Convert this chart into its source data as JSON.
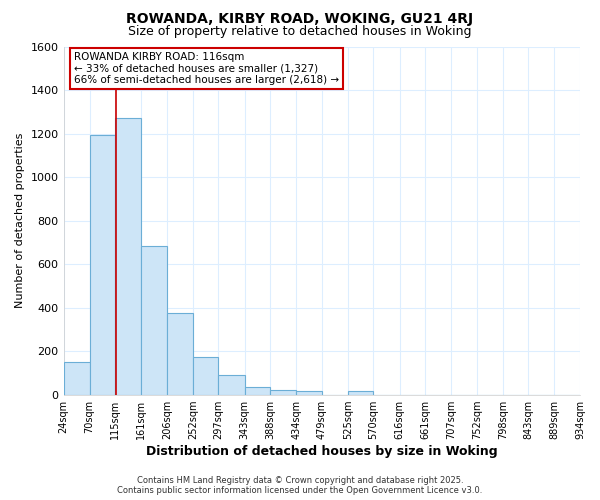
{
  "title": "ROWANDA, KIRBY ROAD, WOKING, GU21 4RJ",
  "subtitle": "Size of property relative to detached houses in Woking",
  "xlabel": "Distribution of detached houses by size in Woking",
  "ylabel": "Number of detached properties",
  "bin_edges": [
    24,
    70,
    115,
    161,
    206,
    252,
    297,
    343,
    388,
    434,
    479,
    525,
    570,
    616,
    661,
    707,
    752,
    798,
    843,
    889,
    934
  ],
  "bar_heights": [
    150,
    1195,
    1270,
    685,
    375,
    175,
    90,
    33,
    22,
    18,
    0,
    18,
    0,
    0,
    0,
    0,
    0,
    0,
    0,
    0
  ],
  "bar_color": "#cde5f7",
  "bar_edge_color": "#6baed6",
  "property_line_x": 116,
  "property_line_color": "#cc0000",
  "annotation_line1": "ROWANDA KIRBY ROAD: 116sqm",
  "annotation_line2": "← 33% of detached houses are smaller (1,327)",
  "annotation_line3": "66% of semi-detached houses are larger (2,618) →",
  "annotation_box_color": "#ffffff",
  "annotation_box_edge_color": "#cc0000",
  "ylim": [
    0,
    1600
  ],
  "yticks": [
    0,
    200,
    400,
    600,
    800,
    1000,
    1200,
    1400,
    1600
  ],
  "tick_labels": [
    "24sqm",
    "70sqm",
    "115sqm",
    "161sqm",
    "206sqm",
    "252sqm",
    "297sqm",
    "343sqm",
    "388sqm",
    "434sqm",
    "479sqm",
    "525sqm",
    "570sqm",
    "616sqm",
    "661sqm",
    "707sqm",
    "752sqm",
    "798sqm",
    "843sqm",
    "889sqm",
    "934sqm"
  ],
  "background_color": "#ffffff",
  "grid_color": "#ddeeff",
  "footer_line1": "Contains HM Land Registry data © Crown copyright and database right 2025.",
  "footer_line2": "Contains public sector information licensed under the Open Government Licence v3.0."
}
